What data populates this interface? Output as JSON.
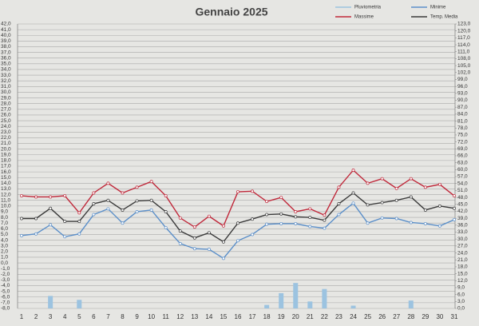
{
  "chart_data": {
    "type": "line",
    "title": "Gennaio 2025",
    "categories": [
      "1",
      "2",
      "3",
      "4",
      "5",
      "6",
      "7",
      "8",
      "9",
      "10",
      "11",
      "12",
      "13",
      "14",
      "15",
      "16",
      "17",
      "18",
      "19",
      "20",
      "21",
      "22",
      "23",
      "24",
      "25",
      "26",
      "27",
      "28",
      "29",
      "30",
      "31"
    ],
    "series": [
      {
        "name": "Pluviometria",
        "type": "bar",
        "axis": "y2",
        "color": "#9cc3e0",
        "values": [
          0,
          0,
          5.4,
          0,
          3.7,
          0,
          0,
          0,
          0,
          0,
          0,
          0,
          0,
          0,
          0,
          0,
          0,
          1.5,
          6.6,
          11,
          3,
          8.4,
          0,
          1.2,
          0,
          0,
          0,
          3.4,
          0,
          0,
          0
        ]
      },
      {
        "name": "Minime",
        "type": "line",
        "color": "#5b8fc9",
        "values": [
          4.8,
          5.1,
          6.7,
          4.6,
          5.1,
          8.5,
          9.5,
          7.0,
          9.0,
          9.3,
          6.2,
          3.4,
          2.5,
          2.4,
          0.8,
          3.9,
          5.0,
          6.8,
          6.9,
          6.9,
          6.4,
          6.1,
          8.5,
          10.5,
          7.0,
          7.9,
          7.8,
          7.1,
          6.9,
          6.5,
          7.6
        ]
      },
      {
        "name": "Massime",
        "type": "line",
        "color": "#c0283a",
        "values": [
          11.8,
          11.6,
          11.6,
          11.8,
          8.8,
          12.3,
          14.0,
          12.3,
          13.3,
          14.3,
          11.8,
          7.9,
          6.3,
          8.2,
          6.5,
          12.5,
          12.6,
          10.8,
          11.5,
          9.0,
          9.5,
          8.4,
          13.3,
          16.3,
          14.0,
          14.8,
          13.1,
          14.8,
          13.3,
          13.8,
          11.8
        ]
      },
      {
        "name": "Temp. Media",
        "type": "line",
        "color": "#3a3a3a",
        "values": [
          7.8,
          7.8,
          9.6,
          7.3,
          7.3,
          10.4,
          11.0,
          9.3,
          10.9,
          11.0,
          9.0,
          5.6,
          4.4,
          5.3,
          3.7,
          7.0,
          7.7,
          8.5,
          8.6,
          8.1,
          8.0,
          7.5,
          10.4,
          12.3,
          10.2,
          10.6,
          11.0,
          11.6,
          9.3,
          10.0,
          9.6
        ]
      }
    ],
    "ylim": [
      -8,
      42
    ],
    "yticks": [
      {
        "value": -8,
        "label": "-8,0"
      },
      {
        "value": -7,
        "label": "-7,0"
      },
      {
        "value": -6,
        "label": "-6,0"
      },
      {
        "value": -5,
        "label": "-5,0"
      },
      {
        "value": -4,
        "label": "-4,0"
      },
      {
        "value": -3,
        "label": "-3,0"
      },
      {
        "value": -2,
        "label": "-2,0"
      },
      {
        "value": -1,
        "label": "-1,0"
      },
      {
        "value": 0,
        "label": "0,0"
      },
      {
        "value": 1,
        "label": "1,0"
      },
      {
        "value": 2,
        "label": "2,0"
      },
      {
        "value": 3,
        "label": "3,0"
      },
      {
        "value": 4,
        "label": "4,0"
      },
      {
        "value": 5,
        "label": "5,0"
      },
      {
        "value": 6,
        "label": "6,0"
      },
      {
        "value": 7,
        "label": "7,0"
      },
      {
        "value": 8,
        "label": "8,0"
      },
      {
        "value": 9,
        "label": "9,0"
      },
      {
        "value": 10,
        "label": "10,0"
      },
      {
        "value": 11,
        "label": "11,0"
      },
      {
        "value": 12,
        "label": "12,0"
      },
      {
        "value": 13,
        "label": "13,0"
      },
      {
        "value": 14,
        "label": "14,0"
      },
      {
        "value": 15,
        "label": "15,0"
      },
      {
        "value": 16,
        "label": "16,0"
      },
      {
        "value": 17,
        "label": "17,0"
      },
      {
        "value": 18,
        "label": "18,0"
      },
      {
        "value": 19,
        "label": "19,0"
      },
      {
        "value": 20,
        "label": "20,0"
      },
      {
        "value": 21,
        "label": "21,0"
      },
      {
        "value": 22,
        "label": "22,0"
      },
      {
        "value": 23,
        "label": "23,0"
      },
      {
        "value": 24,
        "label": "24,0"
      },
      {
        "value": 25,
        "label": "25,0"
      },
      {
        "value": 26,
        "label": "26,0"
      },
      {
        "value": 27,
        "label": "27,0"
      },
      {
        "value": 28,
        "label": "28,0"
      },
      {
        "value": 29,
        "label": "29,0"
      },
      {
        "value": 30,
        "label": "30,0"
      },
      {
        "value": 31,
        "label": "31,0"
      },
      {
        "value": 32,
        "label": "32,0"
      },
      {
        "value": 33,
        "label": "33,0"
      },
      {
        "value": 34,
        "label": "34,0"
      },
      {
        "value": 35,
        "label": "35,0"
      },
      {
        "value": 36,
        "label": "36,0"
      },
      {
        "value": 37,
        "label": "37,0"
      },
      {
        "value": 38,
        "label": "38,0"
      },
      {
        "value": 39,
        "label": "39,0"
      },
      {
        "value": 40,
        "label": "40,0"
      },
      {
        "value": 41,
        "label": "41,0"
      },
      {
        "value": 42,
        "label": "42,0"
      }
    ],
    "y2lim": [
      0,
      123
    ],
    "y2ticks": [
      {
        "value": 0,
        "label": "0,0"
      },
      {
        "value": 3,
        "label": "3,0"
      },
      {
        "value": 6,
        "label": "6,0"
      },
      {
        "value": 9,
        "label": "9,0"
      },
      {
        "value": 12,
        "label": "12,0"
      },
      {
        "value": 15,
        "label": "15,0"
      },
      {
        "value": 18,
        "label": "18,0"
      },
      {
        "value": 21,
        "label": "21,0"
      },
      {
        "value": 24,
        "label": "24,0"
      },
      {
        "value": 27,
        "label": "27,0"
      },
      {
        "value": 30,
        "label": "30,0"
      },
      {
        "value": 33,
        "label": "33,0"
      },
      {
        "value": 36,
        "label": "36,0"
      },
      {
        "value": 39,
        "label": "39,0"
      },
      {
        "value": 42,
        "label": "42,0"
      },
      {
        "value": 45,
        "label": "45,0"
      },
      {
        "value": 48,
        "label": "48,0"
      },
      {
        "value": 51,
        "label": "51,0"
      },
      {
        "value": 54,
        "label": "54,0"
      },
      {
        "value": 57,
        "label": "57,0"
      },
      {
        "value": 60,
        "label": "60,0"
      },
      {
        "value": 63,
        "label": "63,0"
      },
      {
        "value": 66,
        "label": "66,0"
      },
      {
        "value": 69,
        "label": "69,0"
      },
      {
        "value": 72,
        "label": "72,0"
      },
      {
        "value": 75,
        "label": "75,0"
      },
      {
        "value": 78,
        "label": "78,0"
      },
      {
        "value": 81,
        "label": "81,0"
      },
      {
        "value": 84,
        "label": "84,0"
      },
      {
        "value": 87,
        "label": "87,0"
      },
      {
        "value": 90,
        "label": "90,0"
      },
      {
        "value": 93,
        "label": "93,0"
      },
      {
        "value": 96,
        "label": "96,0"
      },
      {
        "value": 99,
        "label": "99,0"
      },
      {
        "value": 102,
        "label": "102,0"
      },
      {
        "value": 105,
        "label": "105,0"
      },
      {
        "value": 108,
        "label": "108,0"
      },
      {
        "value": 111,
        "label": "111,0"
      },
      {
        "value": 114,
        "label": "114,0"
      },
      {
        "value": 117,
        "label": "117,0"
      },
      {
        "value": 120,
        "label": "120,0"
      },
      {
        "value": 123,
        "label": "123,0"
      }
    ],
    "grid": true
  }
}
